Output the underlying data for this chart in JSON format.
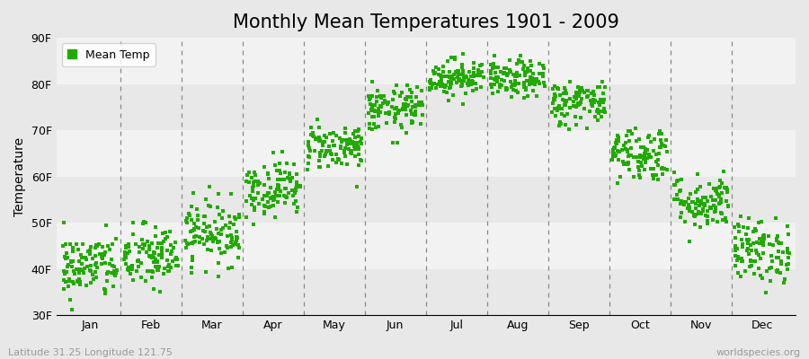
{
  "title": "Monthly Mean Temperatures 1901 - 2009",
  "ylabel": "Temperature",
  "ylim": [
    30,
    90
  ],
  "ytick_labels": [
    "30F",
    "40F",
    "50F",
    "60F",
    "70F",
    "80F",
    "90F"
  ],
  "ytick_values": [
    30,
    40,
    50,
    60,
    70,
    80,
    90
  ],
  "months": [
    "Jan",
    "Feb",
    "Mar",
    "Apr",
    "May",
    "Jun",
    "Jul",
    "Aug",
    "Sep",
    "Oct",
    "Nov",
    "Dec"
  ],
  "mean_temps_F": [
    40.5,
    42.5,
    48.0,
    57.5,
    66.5,
    74.5,
    81.5,
    81.0,
    76.0,
    65.0,
    54.5,
    44.0
  ],
  "temp_spread": [
    3.5,
    3.5,
    3.5,
    3.0,
    2.5,
    2.5,
    2.0,
    2.0,
    2.5,
    3.0,
    3.0,
    3.5
  ],
  "n_years": 109,
  "dot_color": "#22AA00",
  "dot_size": 5,
  "background_color": "#E8E8E8",
  "band_colors": [
    "#F0F0F0",
    "#E4E4E4"
  ],
  "dashed_line_color": "#888888",
  "legend_label": "Mean Temp",
  "footer_left": "Latitude 31.25 Longitude 121.75",
  "footer_right": "worldspecies.org",
  "title_fontsize": 15,
  "axis_label_fontsize": 10,
  "tick_fontsize": 9,
  "footer_fontsize": 8
}
